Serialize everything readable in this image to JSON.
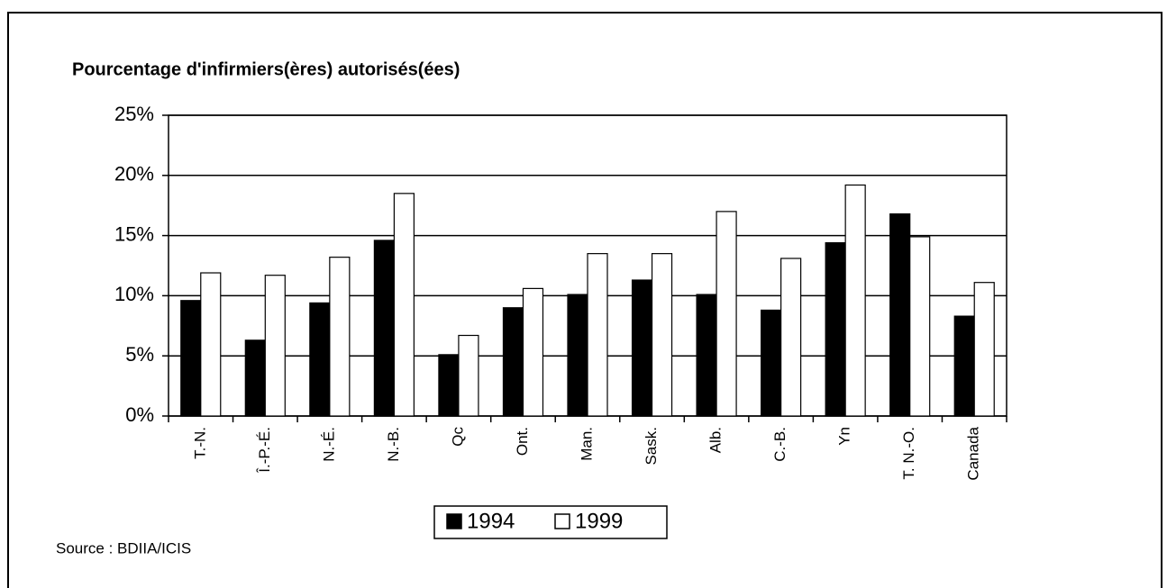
{
  "chart_data": {
    "type": "bar",
    "title": "Pourcentage d'infirmiers(ères) autorisés(ées)",
    "source": "Source : BDIIA/ICIS",
    "categories": [
      "T.-N.",
      "Î.-P.-É.",
      "N.-É.",
      "N.-B.",
      "Qc",
      "Ont.",
      "Man.",
      "Sask.",
      "Alb.",
      "C.-B.",
      "Yn",
      "T. N.-O.",
      "Canada"
    ],
    "series": [
      {
        "name": "1994",
        "color": "#000000",
        "values": [
          9.6,
          6.3,
          9.4,
          14.6,
          5.1,
          9.0,
          10.1,
          11.3,
          10.1,
          8.8,
          14.4,
          16.8,
          8.3
        ]
      },
      {
        "name": "1999",
        "color": "#ffffff",
        "values": [
          11.9,
          11.7,
          13.2,
          18.5,
          6.7,
          10.6,
          13.5,
          13.5,
          17.0,
          13.1,
          19.2,
          14.9,
          11.1
        ]
      }
    ],
    "ylim": [
      0,
      25
    ],
    "yticks": [
      {
        "value": 0,
        "label": "0%"
      },
      {
        "value": 5,
        "label": "5%"
      },
      {
        "value": 10,
        "label": "10%"
      },
      {
        "value": 15,
        "label": "15%"
      },
      {
        "value": 20,
        "label": "20%"
      },
      {
        "value": 25,
        "label": "25%"
      }
    ],
    "grid": true
  }
}
